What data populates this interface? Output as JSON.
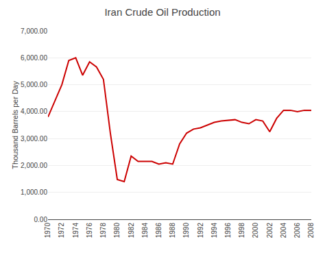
{
  "chart_data": {
    "type": "line",
    "title": "Iran Crude Oil Production",
    "ylabel": "Thousand Barrels per Day",
    "x": [
      1970,
      1971,
      1972,
      1973,
      1974,
      1975,
      1976,
      1977,
      1978,
      1979,
      1980,
      1981,
      1982,
      1983,
      1984,
      1985,
      1986,
      1987,
      1988,
      1989,
      1990,
      1991,
      1992,
      1993,
      1994,
      1995,
      1996,
      1997,
      1998,
      1999,
      2000,
      2001,
      2002,
      2003,
      2004,
      2005,
      2006,
      2007,
      2008
    ],
    "values": [
      3800,
      4400,
      5000,
      5900,
      6000,
      5350,
      5850,
      5660,
      5200,
      3200,
      1480,
      1400,
      2350,
      2150,
      2150,
      2150,
      2050,
      2100,
      2050,
      2800,
      3200,
      3350,
      3400,
      3500,
      3600,
      3650,
      3680,
      3700,
      3600,
      3550,
      3700,
      3650,
      3250,
      3750,
      4050,
      4050,
      4000,
      4050,
      4050
    ],
    "color": "#cc0000",
    "xlim": [
      1970,
      2008
    ],
    "xticks": [
      1970,
      1972,
      1974,
      1976,
      1978,
      1980,
      1982,
      1984,
      1986,
      1988,
      1990,
      1992,
      1994,
      1996,
      1998,
      2000,
      2002,
      2004,
      2006,
      2008
    ],
    "ylim": [
      0,
      7000
    ],
    "yticks": [
      {
        "value": 0,
        "label": "0.00"
      },
      {
        "value": 1000,
        "label": "1,000.00"
      },
      {
        "value": 2000,
        "label": "2,000.00"
      },
      {
        "value": 3000,
        "label": "3,000.00"
      },
      {
        "value": 4000,
        "label": "4,000.00"
      },
      {
        "value": 5000,
        "label": "5,000.00"
      },
      {
        "value": 6000,
        "label": "6,000.00"
      },
      {
        "value": 7000,
        "label": "7,000.00"
      }
    ],
    "grid": true
  }
}
